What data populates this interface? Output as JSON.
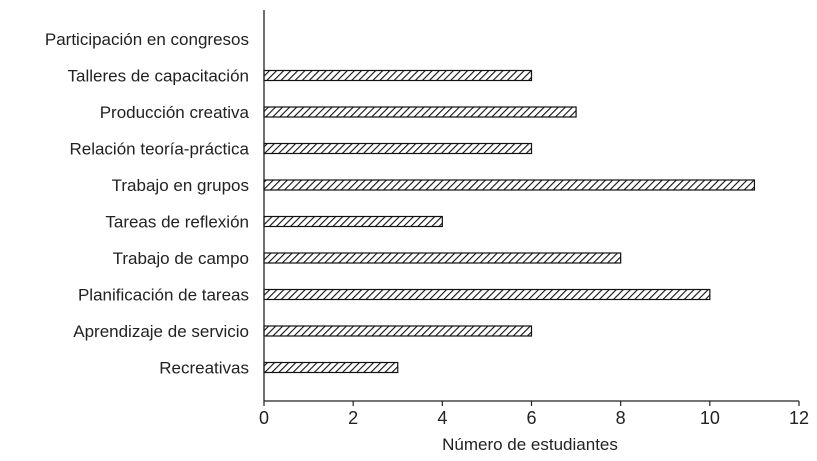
{
  "chart_data": {
    "type": "bar",
    "orientation": "horizontal",
    "categories": [
      "Participación en congresos",
      "Talleres de capacitación",
      "Producción creativa",
      "Relación teoría-práctica",
      "Trabajo en grupos",
      "Tareas de reflexión",
      "Trabajo de campo",
      "Planificación de tareas",
      "Aprendizaje de servicio",
      "Recreativas"
    ],
    "values": [
      0,
      6,
      7,
      6,
      11,
      4,
      8,
      10,
      6,
      3
    ],
    "xlabel": "Número de estudiantes",
    "ylabel": "",
    "xlim": [
      0,
      12
    ],
    "xticks": [
      "0",
      "2",
      "4",
      "6",
      "8",
      "10",
      "12"
    ],
    "grid": false,
    "bar_fill": "diagonal-hatch",
    "colors": {
      "bar_stroke": "#111111",
      "hatch": "#111111",
      "axis": "#222222"
    }
  }
}
